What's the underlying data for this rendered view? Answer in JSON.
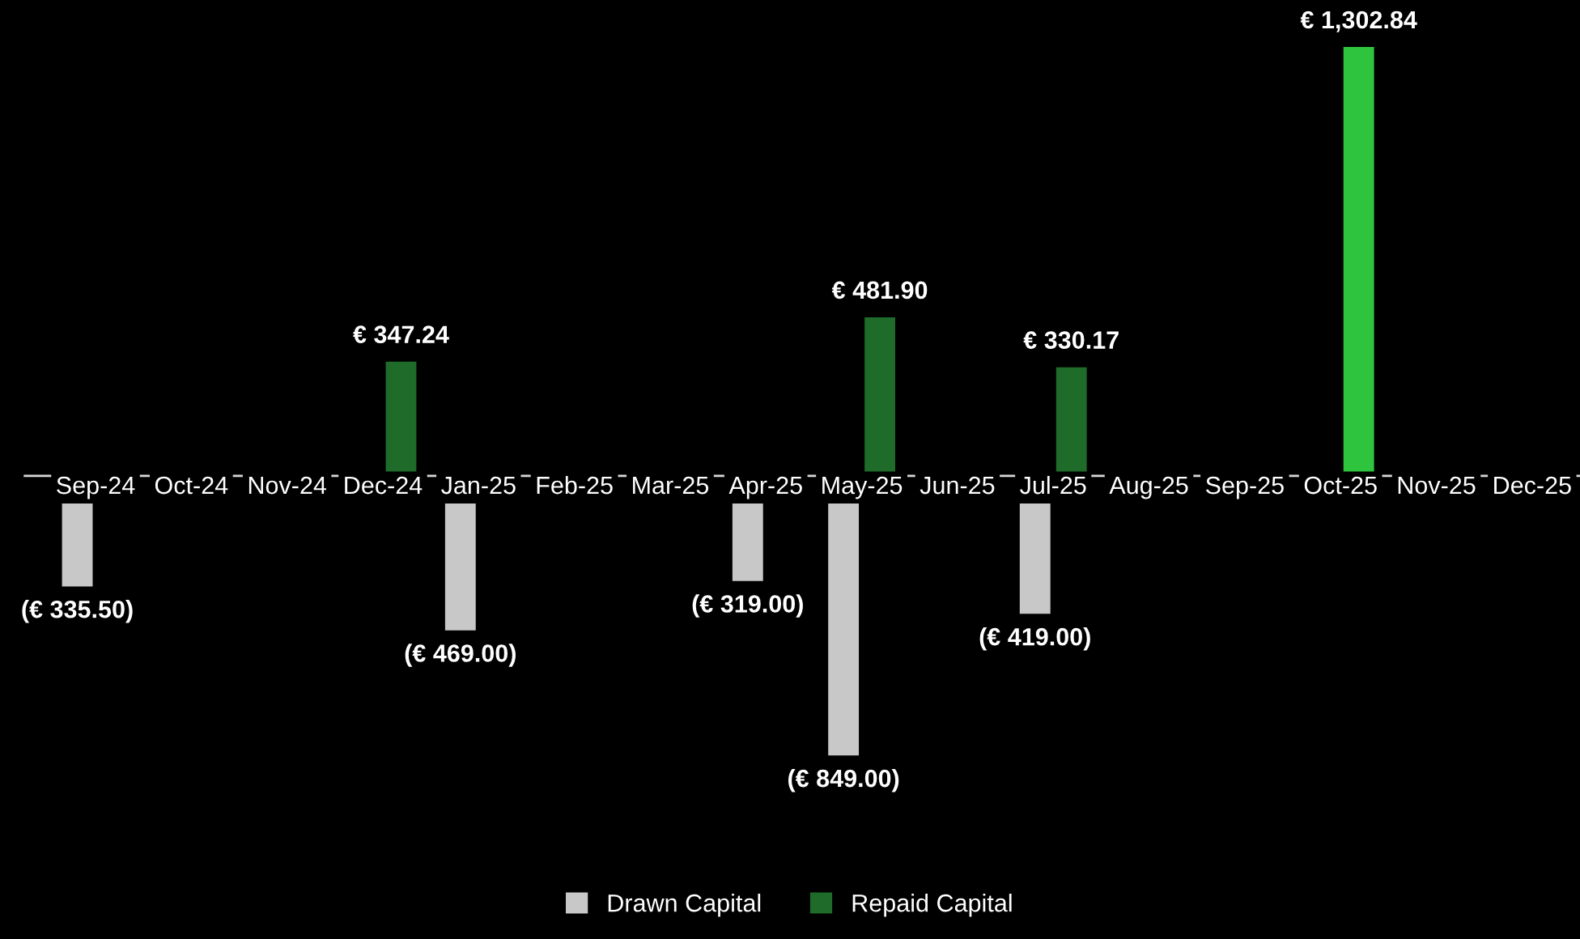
{
  "chart_data": {
    "type": "bar",
    "categories": [
      "Sep-24",
      "Oct-24",
      "Nov-24",
      "Dec-24",
      "Jan-25",
      "Feb-25",
      "Mar-25",
      "Apr-25",
      "May-25",
      "Jun-25",
      "Jul-25",
      "Aug-25",
      "Sep-25",
      "Oct-25",
      "Nov-25",
      "Dec-25"
    ],
    "series": [
      {
        "name": "Drawn Capital",
        "color": "#c8c8c8",
        "values": [
          -335.5,
          null,
          null,
          null,
          -469.0,
          null,
          null,
          -319.0,
          -849.0,
          null,
          -419.0,
          null,
          null,
          null,
          null,
          null
        ],
        "value_labels": [
          "(€ 335.50)",
          null,
          null,
          null,
          "(€ 469.00)",
          null,
          null,
          "(€ 319.00)",
          "(€ 849.00)",
          null,
          "(€ 419.00)",
          null,
          null,
          null,
          null,
          null
        ]
      },
      {
        "name": "Repaid Capital",
        "color": "#1e6b2a",
        "colors": [
          "#1e6b2a",
          "#1e6b2a",
          "#1e6b2a",
          "#1e6b2a",
          "#1e6b2a",
          "#1e6b2a",
          "#1e6b2a",
          "#1e6b2a",
          "#1e6b2a",
          "#1e6b2a",
          "#1e6b2a",
          "#1e6b2a",
          "#1e6b2a",
          "#2ec43e",
          "#1e6b2a",
          "#1e6b2a"
        ],
        "values": [
          null,
          null,
          null,
          347.24,
          null,
          null,
          null,
          null,
          481.9,
          null,
          330.17,
          null,
          null,
          1302.84,
          null,
          null
        ],
        "value_labels": [
          null,
          null,
          null,
          "€ 347.24",
          null,
          null,
          null,
          null,
          "€ 481.90",
          null,
          "€ 330.17",
          null,
          null,
          "€ 1,302.84",
          null,
          null
        ]
      }
    ],
    "legend": "bottom"
  }
}
